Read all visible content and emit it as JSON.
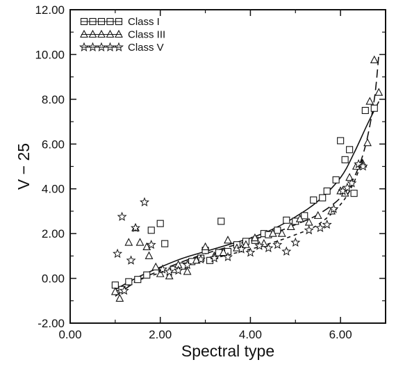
{
  "chart_data": {
    "type": "scatter",
    "title": "",
    "xlabel": "Spectral type",
    "ylabel": "V − 25",
    "xlim": [
      0,
      7
    ],
    "ylim": [
      -2,
      12
    ],
    "x_ticks": [
      "0.00",
      "2.00",
      "4.00",
      "6.00"
    ],
    "x_tick_values": [
      0,
      2,
      4,
      6
    ],
    "y_ticks": [
      "-2.00",
      "0.00",
      "2.00",
      "4.00",
      "6.00",
      "8.00",
      "10.00",
      "12.00"
    ],
    "y_tick_values": [
      -2,
      0,
      2,
      4,
      6,
      8,
      10,
      12
    ],
    "grid": false,
    "legend_position": "top-left",
    "series": [
      {
        "name": "Class I",
        "marker": "square",
        "line": "solid",
        "points": [
          [
            1.0,
            -0.3
          ],
          [
            1.15,
            -0.5
          ],
          [
            1.3,
            -0.15
          ],
          [
            1.5,
            -0.05
          ],
          [
            1.7,
            0.15
          ],
          [
            1.8,
            2.15
          ],
          [
            2.0,
            2.45
          ],
          [
            2.1,
            1.55
          ],
          [
            2.3,
            0.4
          ],
          [
            2.5,
            0.55
          ],
          [
            2.7,
            0.75
          ],
          [
            2.9,
            0.9
          ],
          [
            3.0,
            1.25
          ],
          [
            3.1,
            0.8
          ],
          [
            3.3,
            1.15
          ],
          [
            3.35,
            2.55
          ],
          [
            3.5,
            1.2
          ],
          [
            3.7,
            1.5
          ],
          [
            3.9,
            1.65
          ],
          [
            4.1,
            1.7
          ],
          [
            4.3,
            2.0
          ],
          [
            4.4,
            1.95
          ],
          [
            4.6,
            2.15
          ],
          [
            4.8,
            2.6
          ],
          [
            5.0,
            2.55
          ],
          [
            5.2,
            2.8
          ],
          [
            5.4,
            3.5
          ],
          [
            5.6,
            3.6
          ],
          [
            5.7,
            3.9
          ],
          [
            5.9,
            4.4
          ],
          [
            6.0,
            6.15
          ],
          [
            6.1,
            5.3
          ],
          [
            6.2,
            5.75
          ],
          [
            6.3,
            3.8
          ],
          [
            6.55,
            7.5
          ],
          [
            6.75,
            7.6
          ]
        ]
      },
      {
        "name": "Class III",
        "marker": "triangle",
        "line": "longdash",
        "points": [
          [
            1.0,
            -0.6
          ],
          [
            1.1,
            -0.9
          ],
          [
            1.3,
            1.6
          ],
          [
            1.45,
            2.25
          ],
          [
            1.55,
            1.6
          ],
          [
            1.7,
            1.4
          ],
          [
            1.75,
            1.0
          ],
          [
            1.9,
            0.5
          ],
          [
            2.0,
            0.2
          ],
          [
            2.2,
            0.1
          ],
          [
            2.4,
            0.6
          ],
          [
            2.6,
            0.3
          ],
          [
            2.8,
            0.8
          ],
          [
            3.0,
            1.4
          ],
          [
            3.2,
            1.0
          ],
          [
            3.4,
            1.15
          ],
          [
            3.5,
            1.7
          ],
          [
            3.7,
            1.35
          ],
          [
            3.9,
            1.5
          ],
          [
            4.1,
            1.8
          ],
          [
            4.3,
            1.55
          ],
          [
            4.5,
            2.0
          ],
          [
            4.7,
            2.0
          ],
          [
            4.9,
            2.3
          ],
          [
            5.1,
            2.65
          ],
          [
            5.3,
            2.5
          ],
          [
            5.5,
            2.8
          ],
          [
            5.8,
            3.0
          ],
          [
            6.0,
            3.9
          ],
          [
            6.1,
            3.8
          ],
          [
            6.2,
            4.5
          ],
          [
            6.35,
            5.0
          ],
          [
            6.5,
            5.1
          ],
          [
            6.6,
            6.05
          ],
          [
            6.65,
            7.9
          ],
          [
            6.75,
            9.75
          ],
          [
            6.85,
            8.3
          ]
        ]
      },
      {
        "name": "Class V",
        "marker": "star",
        "line": "shortdash",
        "points": [
          [
            1.05,
            1.1
          ],
          [
            1.15,
            2.75
          ],
          [
            1.2,
            -0.55
          ],
          [
            1.35,
            0.8
          ],
          [
            1.45,
            2.25
          ],
          [
            1.65,
            3.4
          ],
          [
            1.8,
            1.5
          ],
          [
            2.05,
            0.4
          ],
          [
            2.2,
            0.3
          ],
          [
            2.4,
            0.35
          ],
          [
            2.6,
            0.6
          ],
          [
            2.9,
            0.85
          ],
          [
            3.2,
            0.9
          ],
          [
            3.5,
            0.95
          ],
          [
            3.8,
            1.3
          ],
          [
            4.0,
            1.15
          ],
          [
            4.2,
            1.45
          ],
          [
            4.4,
            1.35
          ],
          [
            4.6,
            1.5
          ],
          [
            4.8,
            1.2
          ],
          [
            5.0,
            1.6
          ],
          [
            5.3,
            2.15
          ],
          [
            5.55,
            2.25
          ],
          [
            5.7,
            2.4
          ],
          [
            5.85,
            3.1
          ],
          [
            6.05,
            3.9
          ],
          [
            6.15,
            4.05
          ],
          [
            6.25,
            4.25
          ],
          [
            6.4,
            5.1
          ],
          [
            6.5,
            5.0
          ]
        ]
      }
    ],
    "fits": [
      {
        "series": "Class I",
        "style": "solid",
        "points": [
          [
            1.0,
            -0.5
          ],
          [
            1.5,
            0.05
          ],
          [
            2.0,
            0.5
          ],
          [
            2.5,
            0.9
          ],
          [
            3.0,
            1.2
          ],
          [
            3.5,
            1.5
          ],
          [
            4.0,
            1.8
          ],
          [
            4.5,
            2.2
          ],
          [
            5.0,
            2.75
          ],
          [
            5.5,
            3.45
          ],
          [
            6.0,
            4.5
          ],
          [
            6.3,
            5.6
          ],
          [
            6.6,
            6.9
          ],
          [
            6.85,
            7.9
          ]
        ]
      },
      {
        "series": "Class III",
        "style": "longdash",
        "points": [
          [
            1.0,
            -0.8
          ],
          [
            1.5,
            -0.1
          ],
          [
            2.0,
            0.35
          ],
          [
            2.5,
            0.75
          ],
          [
            3.0,
            1.1
          ],
          [
            3.5,
            1.4
          ],
          [
            4.0,
            1.7
          ],
          [
            4.5,
            2.0
          ],
          [
            5.0,
            2.4
          ],
          [
            5.5,
            2.85
          ],
          [
            6.0,
            3.6
          ],
          [
            6.3,
            4.5
          ],
          [
            6.55,
            5.9
          ],
          [
            6.75,
            8.0
          ],
          [
            6.85,
            10.0
          ]
        ]
      },
      {
        "series": "Class V",
        "style": "shortdash",
        "points": [
          [
            1.0,
            -0.6
          ],
          [
            1.5,
            -0.1
          ],
          [
            2.0,
            0.25
          ],
          [
            2.5,
            0.55
          ],
          [
            3.0,
            0.8
          ],
          [
            3.5,
            1.05
          ],
          [
            4.0,
            1.3
          ],
          [
            4.5,
            1.6
          ],
          [
            5.0,
            1.95
          ],
          [
            5.5,
            2.4
          ],
          [
            6.0,
            3.3
          ],
          [
            6.3,
            4.3
          ],
          [
            6.5,
            5.4
          ]
        ]
      }
    ]
  },
  "legend": {
    "entries": [
      {
        "label": "Class  I",
        "marker": "square"
      },
      {
        "label": "Class  III",
        "marker": "triangle"
      },
      {
        "label": "Class  V",
        "marker": "star"
      }
    ]
  }
}
